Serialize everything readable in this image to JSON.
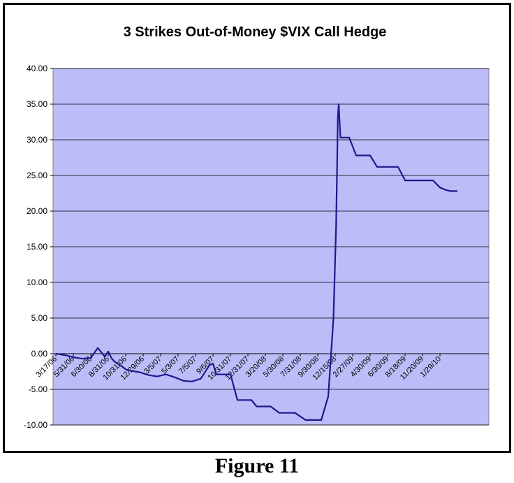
{
  "figure_caption": "Figure 11",
  "colors": {
    "plot_background": "#bcbcf9",
    "line": "#1a1a8c",
    "grid": "#000000"
  },
  "chart_data": {
    "type": "line",
    "title": "3 Strikes Out-of-Money $VIX Call Hedge",
    "xlabel": "",
    "ylabel": "",
    "ylim": [
      -10,
      40
    ],
    "y_ticks": [
      "-10.00",
      "-5.00",
      "0.00",
      "5.00",
      "10.00",
      "15.00",
      "20.00",
      "25.00",
      "30.00",
      "35.00",
      "40.00"
    ],
    "grid": "horizontal",
    "legend": "none",
    "x_tick_labels": [
      "3/17/06",
      "5/31/06",
      "6/30/06",
      "8/31/06",
      "10/31/06",
      "12/29/06",
      "3/5/07",
      "5/3/07",
      "7/5/07",
      "9/6/07",
      "10/31/07",
      "12/31/07",
      "3/20/08",
      "5/30/08",
      "7/31/08",
      "9/30/08",
      "12/15/08",
      "2/27/09",
      "4/30/09",
      "6/30/09",
      "8/18/09",
      "11/20/09",
      "1/29/10"
    ],
    "series": [
      {
        "x": [
          0,
          0.5,
          1,
          1.5,
          2,
          2.4,
          2.8,
          3,
          3.2,
          3.4,
          3.6,
          3.8,
          4,
          4.3,
          4.8,
          5.3,
          5.8,
          6.3,
          6.8,
          7.3,
          7.8,
          8.3,
          8.8,
          9,
          9.2,
          9.6,
          10,
          10.4,
          10.8,
          11.2,
          11.5,
          11.7,
          12.3,
          12.8,
          13.2,
          13.7,
          14.3,
          14.7,
          15.2,
          15.6,
          15.9,
          16.05,
          16.1,
          16.15,
          16.2,
          16.3,
          16.45,
          16.6,
          16.8,
          17.2,
          17.5,
          17.7,
          18,
          18.4,
          18.8,
          19.2,
          19.6,
          20,
          20.3,
          20.7,
          21,
          21.3,
          21.6,
          22,
          22.3,
          22.6,
          22.9,
          23
        ],
        "y": [
          0,
          -0.2,
          -0.5,
          -0.7,
          -0.6,
          0.8,
          -0.4,
          0.3,
          -0.7,
          -1.2,
          -1.5,
          -1.8,
          -2.2,
          -2.4,
          -2.6,
          -3.0,
          -3.2,
          -2.9,
          -3.3,
          -3.8,
          -3.9,
          -3.5,
          -1.6,
          -1.4,
          -2.9,
          -2.9,
          -2.9,
          -6.5,
          -6.5,
          -6.5,
          -7.4,
          -7.4,
          -7.4,
          -8.3,
          -8.3,
          -8.3,
          -9.3,
          -9.3,
          -9.3,
          -6,
          5,
          18,
          25,
          33,
          35,
          30.3,
          30.3,
          30.3,
          30.3,
          27.8,
          27.8,
          27.8,
          27.8,
          26.2,
          26.2,
          26.2,
          26.2,
          24.3,
          24.3,
          24.3,
          24.3,
          24.3,
          24.3,
          23.3,
          23.0,
          22.8,
          22.8,
          22.8
        ]
      }
    ]
  }
}
